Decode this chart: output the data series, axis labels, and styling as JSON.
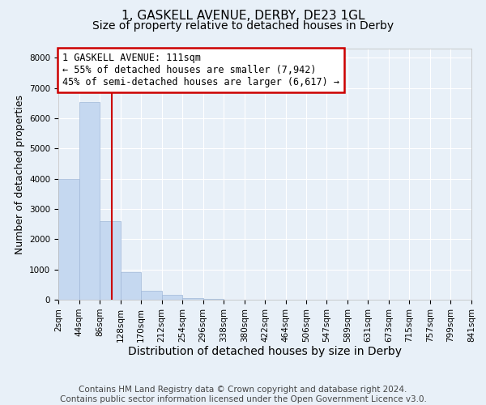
{
  "title1": "1, GASKELL AVENUE, DERBY, DE23 1GL",
  "title2": "Size of property relative to detached houses in Derby",
  "xlabel": "Distribution of detached houses by size in Derby",
  "ylabel": "Number of detached properties",
  "footnote": "Contains HM Land Registry data © Crown copyright and database right 2024.\nContains public sector information licensed under the Open Government Licence v3.0.",
  "bin_edges": [
    2,
    44,
    86,
    128,
    170,
    212,
    254,
    296,
    338,
    380,
    422,
    464,
    506,
    547,
    589,
    631,
    673,
    715,
    757,
    799,
    841
  ],
  "bar_heights": [
    3980,
    6530,
    2600,
    900,
    300,
    150,
    60,
    30,
    10,
    5,
    2,
    1,
    0,
    0,
    0,
    0,
    0,
    0,
    0,
    0
  ],
  "bar_color": "#c5d8f0",
  "bar_edgecolor": "#a0b8d8",
  "property_size": 111,
  "vline_color": "#cc0000",
  "annotation_line1": "1 GASKELL AVENUE: 111sqm",
  "annotation_line2": "← 55% of detached houses are smaller (7,942)",
  "annotation_line3": "45% of semi-detached houses are larger (6,617) →",
  "annotation_box_color": "#cc0000",
  "annotation_bg_color": "#ffffff",
  "ylim": [
    0,
    8300
  ],
  "yticks": [
    0,
    1000,
    2000,
    3000,
    4000,
    5000,
    6000,
    7000,
    8000
  ],
  "bg_color": "#e8f0f8",
  "grid_color": "#ffffff",
  "title1_fontsize": 11,
  "title2_fontsize": 10,
  "xlabel_fontsize": 10,
  "ylabel_fontsize": 9,
  "tick_fontsize": 7.5,
  "annot_fontsize": 8.5,
  "footnote_fontsize": 7.5
}
